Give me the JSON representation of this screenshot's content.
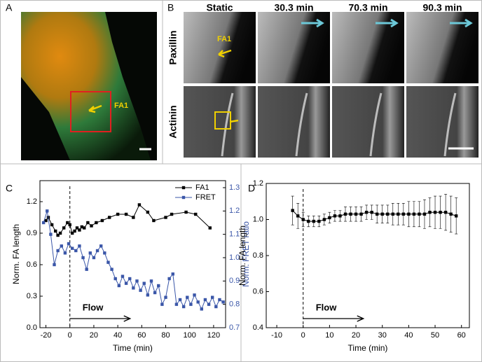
{
  "panels": {
    "a": {
      "letter": "A",
      "label": "FA1"
    },
    "b": {
      "letter": "B",
      "columns": [
        "Static",
        "30.3 min",
        "70.3 min",
        "90.3 min"
      ],
      "rows": [
        "Paxillin",
        "Actinin"
      ],
      "label": "FA1"
    }
  },
  "chart_data": [
    {
      "type": "line",
      "letter": "C",
      "xlabel": "Time (min)",
      "ylabel": "Norm. FA length",
      "y2label": "Norm. FRET ratio",
      "annotation": "Flow",
      "vline": 0,
      "legend": "upper right",
      "xlim": [
        -25,
        130
      ],
      "xticks": [
        -20,
        0,
        20,
        40,
        60,
        80,
        100,
        120
      ],
      "ylim": [
        0,
        1.4
      ],
      "yticks": [
        {
          "value": 0,
          "label": "0.0"
        },
        0.3,
        0.6,
        0.9,
        1.2
      ],
      "y2lim": [
        0.7,
        1.33
      ],
      "y2ticks": [
        0.7,
        0.8,
        0.9,
        {
          "value": 1,
          "label": "1.0"
        },
        1.1,
        1.2,
        1.3
      ],
      "series": [
        {
          "name": "FA1",
          "color": "#000000",
          "x": [
            -20,
            -18,
            -15,
            -12,
            -10,
            -8,
            -5,
            -2,
            0,
            2,
            4,
            6,
            8,
            10,
            12,
            15,
            18,
            22,
            27,
            33,
            40,
            47,
            53,
            58,
            65,
            70,
            80,
            85,
            97,
            105,
            117
          ],
          "values": [
            1.02,
            1.05,
            0.98,
            0.92,
            0.88,
            0.9,
            0.95,
            1.0,
            0.98,
            0.9,
            0.92,
            0.95,
            0.93,
            0.96,
            0.95,
            1.0,
            0.97,
            1.0,
            1.02,
            1.05,
            1.08,
            1.08,
            1.05,
            1.17,
            1.1,
            1.02,
            1.05,
            1.08,
            1.1,
            1.08,
            0.95
          ]
        },
        {
          "name": "FRET",
          "color": "#3a56a8",
          "axis": "y2",
          "x": [
            -22,
            -19,
            -16,
            -13,
            -10,
            -7,
            -4,
            -1,
            2,
            5,
            8,
            11,
            14,
            17,
            20,
            23,
            26,
            29,
            32,
            35,
            38,
            41,
            44,
            47,
            50,
            53,
            56,
            59,
            62,
            65,
            68,
            71,
            74,
            77,
            80,
            83,
            86,
            89,
            92,
            95,
            98,
            101,
            104,
            107,
            110,
            113,
            116,
            119,
            122,
            125,
            128
          ],
          "values": [
            1.15,
            1.2,
            1.1,
            0.97,
            1.03,
            1.05,
            1.02,
            1.06,
            1.04,
            1.03,
            1.05,
            1.0,
            0.95,
            1.02,
            1.0,
            1.03,
            1.05,
            1.02,
            0.98,
            0.95,
            0.91,
            0.88,
            0.92,
            0.89,
            0.91,
            0.87,
            0.9,
            0.86,
            0.89,
            0.84,
            0.9,
            0.85,
            0.88,
            0.8,
            0.83,
            0.91,
            0.93,
            0.8,
            0.82,
            0.79,
            0.83,
            0.8,
            0.84,
            0.81,
            0.78,
            0.82,
            0.8,
            0.83,
            0.79,
            0.82,
            0.81
          ]
        }
      ]
    },
    {
      "type": "line",
      "letter": "D",
      "xlabel": "Time (min)",
      "ylabel": "Norm. FA length",
      "annotation": "Flow",
      "vline": 0,
      "xlim": [
        -14,
        63
      ],
      "xticks": [
        -10,
        0,
        10,
        20,
        30,
        40,
        50,
        60
      ],
      "ylim": [
        0.4,
        1.2
      ],
      "yticks": [
        0.4,
        0.6,
        0.8,
        {
          "value": 1,
          "label": "1.0"
        },
        1.2
      ],
      "series": [
        {
          "color": "#000000",
          "x": [
            -4,
            -2,
            0,
            2,
            4,
            6,
            8,
            10,
            12,
            14,
            16,
            18,
            20,
            22,
            24,
            26,
            28,
            30,
            32,
            34,
            36,
            38,
            40,
            42,
            44,
            46,
            48,
            50,
            52,
            54,
            56,
            58
          ],
          "values": [
            1.05,
            1.02,
            1.0,
            0.99,
            0.99,
            0.99,
            1.0,
            1.01,
            1.02,
            1.02,
            1.03,
            1.03,
            1.03,
            1.03,
            1.04,
            1.04,
            1.03,
            1.03,
            1.03,
            1.03,
            1.03,
            1.03,
            1.03,
            1.03,
            1.03,
            1.03,
            1.04,
            1.04,
            1.04,
            1.04,
            1.03,
            1.02
          ],
          "errors": [
            0.08,
            0.07,
            0.04,
            0.03,
            0.03,
            0.03,
            0.03,
            0.03,
            0.03,
            0.03,
            0.04,
            0.04,
            0.04,
            0.04,
            0.04,
            0.04,
            0.05,
            0.05,
            0.05,
            0.06,
            0.06,
            0.06,
            0.07,
            0.07,
            0.07,
            0.08,
            0.08,
            0.09,
            0.09,
            0.1,
            0.1,
            0.1
          ]
        }
      ]
    }
  ]
}
